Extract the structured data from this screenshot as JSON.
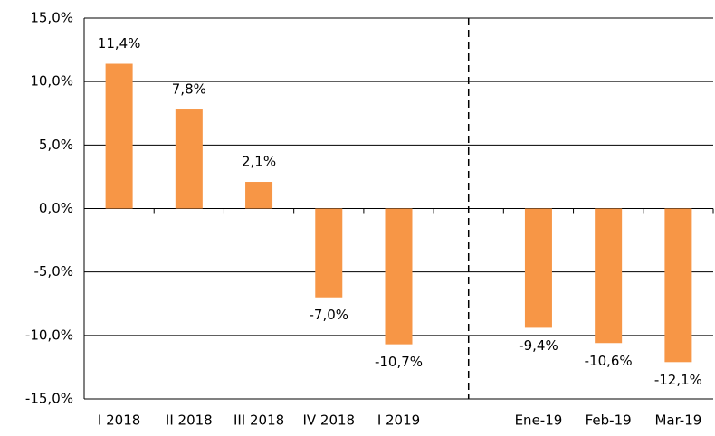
{
  "chart_data": {
    "type": "bar",
    "categories": [
      "I 2018",
      "II 2018",
      "III 2018",
      "IV 2018",
      "I 2019",
      null,
      "Ene-19",
      "Feb-19",
      "Mar-19"
    ],
    "values": [
      11.4,
      7.8,
      2.1,
      -7.0,
      -10.7,
      null,
      -9.4,
      -10.6,
      -12.1
    ],
    "value_labels": [
      "11,4%",
      "7,8%",
      "2,1%",
      "-7,0%",
      "-10,7%",
      null,
      "-9,4%",
      "-10,6%",
      "-12,1%"
    ],
    "color": "#f79646",
    "ylim": [
      -15,
      15
    ],
    "yticks": [
      {
        "value": -15,
        "label": "-15,0%"
      },
      {
        "value": -10,
        "label": "-10,0%"
      },
      {
        "value": -5,
        "label": "-5,0%"
      },
      {
        "value": 0,
        "label": "0,0%"
      },
      {
        "value": 5,
        "label": "5,0%"
      },
      {
        "value": 10,
        "label": "10,0%"
      },
      {
        "value": 15,
        "label": "15,0%"
      }
    ],
    "grid": true
  }
}
